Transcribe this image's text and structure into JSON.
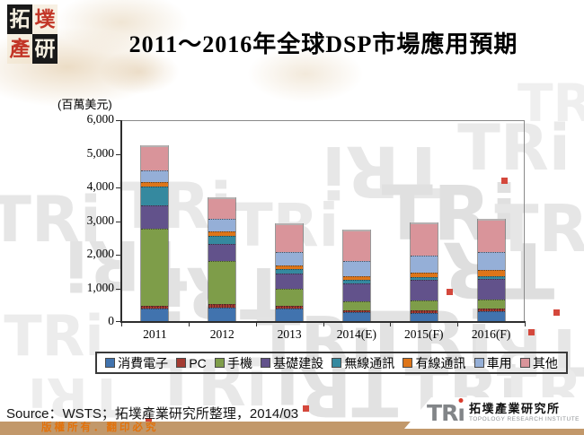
{
  "page": {
    "title": "2011～2016年全球DSP市場應用預期",
    "source_note": "Source：WSTS；拓墣產業研究所整理，2014/03",
    "copyright_notice": "版權所有．翻印必究"
  },
  "logo_topleft": {
    "chars": [
      "拓",
      "墣",
      "產",
      "研"
    ]
  },
  "logo_bottomright": {
    "acronym_prefix": "TR",
    "acronym_i": "ı",
    "name_cjk": "拓墣產業研究所",
    "name_en": "TOPOLOGY RESEARCH INSTITUTE"
  },
  "watermark": {
    "text": "TRi"
  },
  "chart_data": {
    "type": "bar",
    "stacked": true,
    "title": "2011～2016年全球DSP市場應用預期",
    "unit_label": "(百萬美元)",
    "xlabel": "",
    "ylabel": "百萬美元",
    "ylim": [
      0,
      6000
    ],
    "grid": false,
    "legend_position": "bottom",
    "categories": [
      "2011",
      "2012",
      "2013",
      "2014(E)",
      "2015(F)",
      "2016(F)"
    ],
    "series": [
      {
        "name": "消費電子",
        "color": "#4173AE",
        "values": [
          390,
          420,
          390,
          290,
          280,
          310
        ]
      },
      {
        "name": "PC",
        "color": "#A33B32",
        "values": [
          90,
          100,
          90,
          70,
          60,
          80
        ]
      },
      {
        "name": "手機",
        "color": "#7E9D49",
        "values": [
          2300,
          1300,
          500,
          250,
          290,
          290
        ]
      },
      {
        "name": "基礎建設",
        "color": "#62528B",
        "values": [
          690,
          490,
          450,
          550,
          610,
          590
        ]
      },
      {
        "name": "無線通訊",
        "color": "#35899F",
        "values": [
          550,
          250,
          140,
          90,
          100,
          90
        ]
      },
      {
        "name": "有線通訊",
        "color": "#DD7519",
        "values": [
          130,
          130,
          110,
          120,
          120,
          180
        ]
      },
      {
        "name": "車用",
        "color": "#95AFD7",
        "values": [
          360,
          360,
          400,
          440,
          510,
          530
        ]
      },
      {
        "name": "其他",
        "color": "#D9949A",
        "values": [
          750,
          640,
          860,
          930,
          1000,
          1000
        ]
      }
    ],
    "totals": [
      5260,
      3690,
      2940,
      2740,
      2970,
      3070
    ],
    "y_ticks": [
      {
        "value": 0,
        "label": "0"
      },
      {
        "value": 1000,
        "label": "1,000"
      },
      {
        "value": 2000,
        "label": "2,000"
      },
      {
        "value": 3000,
        "label": "3,000"
      },
      {
        "value": 4000,
        "label": "4,000"
      },
      {
        "value": 5000,
        "label": "5,000"
      },
      {
        "value": 6000,
        "label": "6,000"
      }
    ]
  }
}
